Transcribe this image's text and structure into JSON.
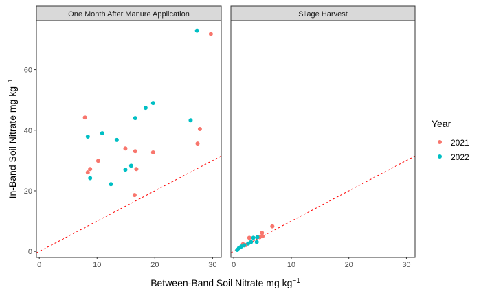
{
  "chart_data": {
    "type": "scatter",
    "xlabel": "Between-Band Soil Nitrate mg kg",
    "xlabel_sup": "−1",
    "ylabel": "In-Band Soil Nitrate mg kg",
    "ylabel_sup": "−1",
    "legend": {
      "title": "Year",
      "placement": "right",
      "entries": [
        {
          "name": "2021",
          "color": "#F8766D"
        },
        {
          "name": "2022",
          "color": "#00BFC4"
        }
      ]
    },
    "reference_line": {
      "type": "y=x",
      "color": "#FF0000",
      "style": "dashed"
    },
    "xlim": [
      -0.5,
      31.5
    ],
    "ylim": [
      -2,
      76
    ],
    "xticks": [
      0,
      10,
      20,
      30
    ],
    "yticks": [
      0,
      20,
      40,
      60
    ],
    "grid": false,
    "facets": [
      {
        "title": "One Month After Manure Application",
        "series": [
          {
            "name": "2021",
            "points": [
              [
                29.7,
                71.8
              ],
              [
                7.9,
                44.2
              ],
              [
                27.8,
                40.4
              ],
              [
                27.4,
                35.6
              ],
              [
                14.9,
                34.0
              ],
              [
                16.6,
                33.1
              ],
              [
                19.7,
                32.7
              ],
              [
                10.2,
                29.9
              ],
              [
                8.8,
                27.2
              ],
              [
                16.8,
                27.2
              ],
              [
                8.4,
                26.1
              ],
              [
                16.5,
                18.6
              ]
            ]
          },
          {
            "name": "2022",
            "points": [
              [
                27.3,
                72.9
              ],
              [
                19.7,
                49.0
              ],
              [
                18.4,
                47.4
              ],
              [
                16.6,
                44.0
              ],
              [
                26.2,
                43.3
              ],
              [
                10.9,
                39.0
              ],
              [
                8.4,
                37.9
              ],
              [
                13.4,
                36.8
              ],
              [
                15.9,
                28.3
              ],
              [
                14.9,
                27.0
              ],
              [
                8.8,
                24.2
              ],
              [
                12.4,
                22.2
              ]
            ]
          }
        ]
      },
      {
        "title": "Silage Harvest",
        "series": [
          {
            "name": "2021",
            "points": [
              [
                6.7,
                8.3
              ],
              [
                4.9,
                6.1
              ],
              [
                5.0,
                5.0
              ],
              [
                4.5,
                4.7
              ],
              [
                2.7,
                4.5
              ],
              [
                1.6,
                2.4
              ],
              [
                2.1,
                2.1
              ]
            ]
          },
          {
            "name": "2022",
            "points": [
              [
                3.4,
                4.5
              ],
              [
                4.1,
                4.7
              ],
              [
                4.0,
                3.1
              ],
              [
                3.0,
                3.1
              ],
              [
                2.5,
                2.6
              ],
              [
                1.8,
                2.0
              ],
              [
                1.3,
                1.6
              ],
              [
                0.9,
                1.1
              ],
              [
                0.6,
                0.5
              ]
            ]
          }
        ]
      }
    ]
  }
}
